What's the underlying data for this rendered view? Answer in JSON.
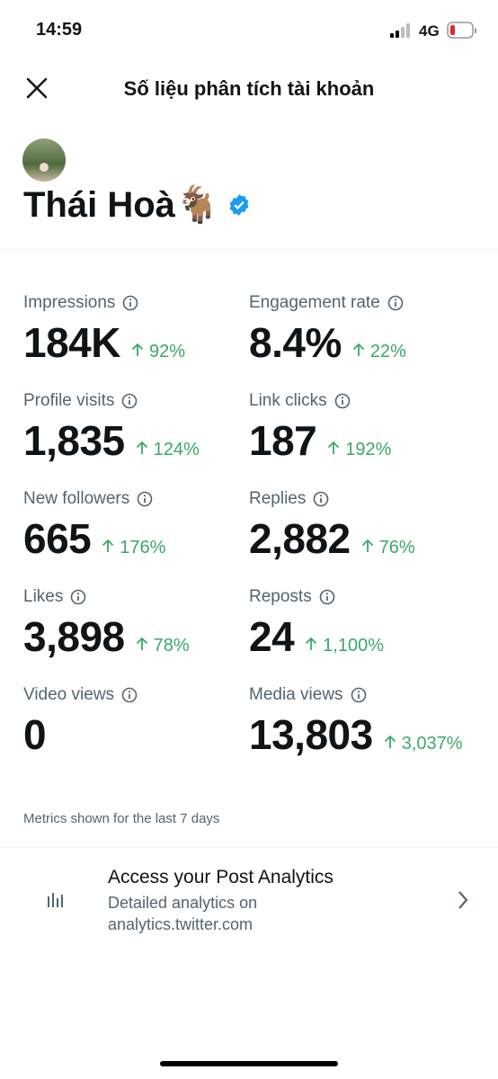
{
  "status_bar": {
    "time": "14:59",
    "network": "4G"
  },
  "header": {
    "title": "Số liệu phân tích tài khoản"
  },
  "profile": {
    "name": "Thái Hoà🐐"
  },
  "metrics": [
    {
      "label": "Impressions",
      "value": "184K",
      "change": "92%"
    },
    {
      "label": "Engagement rate",
      "value": "8.4%",
      "change": "22%"
    },
    {
      "label": "Profile visits",
      "value": "1,835",
      "change": "124%"
    },
    {
      "label": "Link clicks",
      "value": "187",
      "change": "192%"
    },
    {
      "label": "New followers",
      "value": "665",
      "change": "176%"
    },
    {
      "label": "Replies",
      "value": "2,882",
      "change": "76%"
    },
    {
      "label": "Likes",
      "value": "3,898",
      "change": "78%"
    },
    {
      "label": "Reposts",
      "value": "24",
      "change": "1,100%"
    },
    {
      "label": "Video views",
      "value": "0"
    },
    {
      "label": "Media views",
      "value": "13,803",
      "change": "3,037%"
    }
  ],
  "note": "Metrics shown for the last 7 days",
  "post_analytics": {
    "title": "Access your Post Analytics",
    "description": "Detailed analytics on analytics.twitter.com"
  }
}
